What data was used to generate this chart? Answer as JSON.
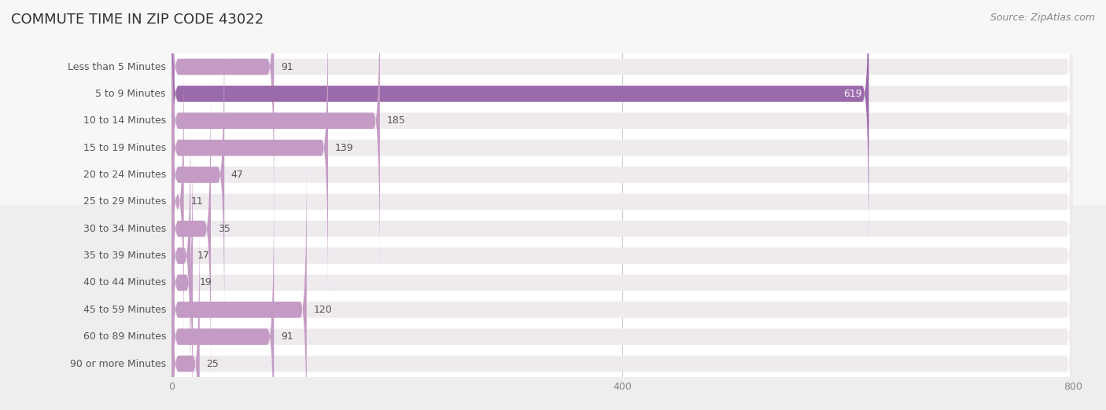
{
  "title": "COMMUTE TIME IN ZIP CODE 43022",
  "source": "Source: ZipAtlas.com",
  "categories": [
    "Less than 5 Minutes",
    "5 to 9 Minutes",
    "10 to 14 Minutes",
    "15 to 19 Minutes",
    "20 to 24 Minutes",
    "25 to 29 Minutes",
    "30 to 34 Minutes",
    "35 to 39 Minutes",
    "40 to 44 Minutes",
    "45 to 59 Minutes",
    "60 to 89 Minutes",
    "90 or more Minutes"
  ],
  "values": [
    91,
    619,
    185,
    139,
    47,
    11,
    35,
    17,
    19,
    120,
    91,
    25
  ],
  "bar_color_normal": "#c49bc4",
  "bar_color_highlight": "#9b6aab",
  "highlight_index": 1,
  "bar_bg_color": "#eeeaee",
  "row_bg_colors_even": "#f7f7f7",
  "row_bg_colors_odd": "#eeeeee",
  "xlim_max": 800,
  "xticks": [
    0,
    400,
    800
  ],
  "title_fontsize": 13,
  "label_fontsize": 9,
  "value_fontsize": 9,
  "source_fontsize": 9,
  "background_color": "#ffffff",
  "title_color": "#333333",
  "label_color": "#555555",
  "value_color_normal": "#555555",
  "value_color_highlight": "#ffffff",
  "grid_color": "#cccccc",
  "tick_color": "#888888"
}
